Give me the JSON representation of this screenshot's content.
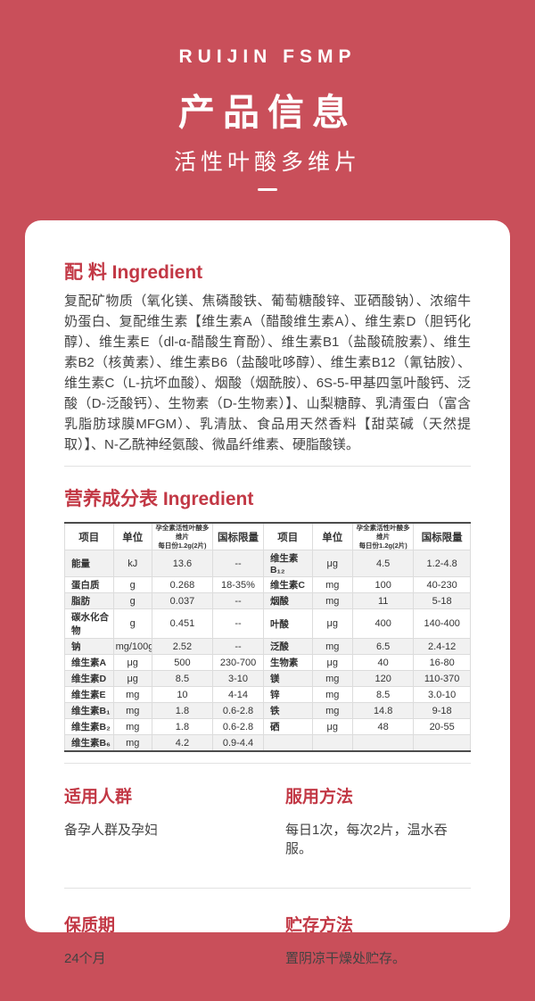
{
  "colors": {
    "background": "#c94f5a",
    "accent": "#c23845",
    "card": "#ffffff",
    "table_stripe": "#f1f1f1"
  },
  "header": {
    "brand": "RUIJIN FSMP",
    "title": "产品信息",
    "subtitle": "活性叶酸多维片"
  },
  "ingredients": {
    "heading": "配 料 Ingredient",
    "body": "复配矿物质（氧化镁、焦磷酸铁、葡萄糖酸锌、亚硒酸钠）、浓缩牛奶蛋白、复配维生素【维生素A（醋酸维生素A）、维生素D（胆钙化醇）、维生素E（dl-α-醋酸生育酚）、维生素B1（盐酸硫胺素）、维生素B2（核黄素）、维生素B6（盐酸吡哆醇）、维生素B12（氰钴胺）、维生素C（L-抗坏血酸）、烟酸（烟酰胺）、6S-5-甲基四氢叶酸钙、泛酸（D-泛酸钙）、生物素（D-生物素）】、山梨糖醇、乳清蛋白（富含乳脂肪球膜MFGM）、乳清肽、食品用天然香料【甜菜碱（天然提取）】、N-乙酰神经氨酸、微晶纤维素、硬脂酸镁。"
  },
  "nutrition": {
    "heading": "营养成分表 Ingredient",
    "table": {
      "headers": [
        "项目",
        "单位",
        "孕全素活性叶酸多维片\n每日份1.2g(2片)",
        "国标限量",
        "项目",
        "单位",
        "孕全素活性叶酸多维片\n每日份1.2g(2片)",
        "国标限量"
      ],
      "rows": [
        [
          "能量",
          "kJ",
          "13.6",
          "--",
          "维生素B₁₂",
          "μg",
          "4.5",
          "1.2-4.8"
        ],
        [
          "蛋白质",
          "g",
          "0.268",
          "18-35%",
          "维生素C",
          "mg",
          "100",
          "40-230"
        ],
        [
          "脂肪",
          "g",
          "0.037",
          "--",
          "烟酸",
          "mg",
          "11",
          "5-18"
        ],
        [
          "碳水化合物",
          "g",
          "0.451",
          "--",
          "叶酸",
          "μg",
          "400",
          "140-400"
        ],
        [
          "钠",
          "mg/100g",
          "2.52",
          "--",
          "泛酸",
          "mg",
          "6.5",
          "2.4-12"
        ],
        [
          "维生素A",
          "μg",
          "500",
          "230-700",
          "生物素",
          "μg",
          "40",
          "16-80"
        ],
        [
          "维生素D",
          "μg",
          "8.5",
          "3-10",
          "镁",
          "mg",
          "120",
          "110-370"
        ],
        [
          "维生素E",
          "mg",
          "10",
          "4-14",
          "锌",
          "mg",
          "8.5",
          "3.0-10"
        ],
        [
          "维生素B₁",
          "mg",
          "1.8",
          "0.6-2.8",
          "铁",
          "mg",
          "14.8",
          "9-18"
        ],
        [
          "维生素B₂",
          "mg",
          "1.8",
          "0.6-2.8",
          "硒",
          "μg",
          "48",
          "20-55"
        ],
        [
          "维生素B₆",
          "mg",
          "4.2",
          "0.9-4.4",
          "",
          "",
          "",
          ""
        ]
      ]
    }
  },
  "sections": {
    "audience": {
      "heading": "适用人群",
      "body": "备孕人群及孕妇"
    },
    "usage": {
      "heading": "服用方法",
      "body": "每日1次，每次2片，温水吞服。"
    },
    "shelf_life": {
      "heading": "保质期",
      "body": "24个月"
    },
    "storage": {
      "heading": "贮存方法",
      "body": "置阴凉干燥处贮存。"
    }
  }
}
